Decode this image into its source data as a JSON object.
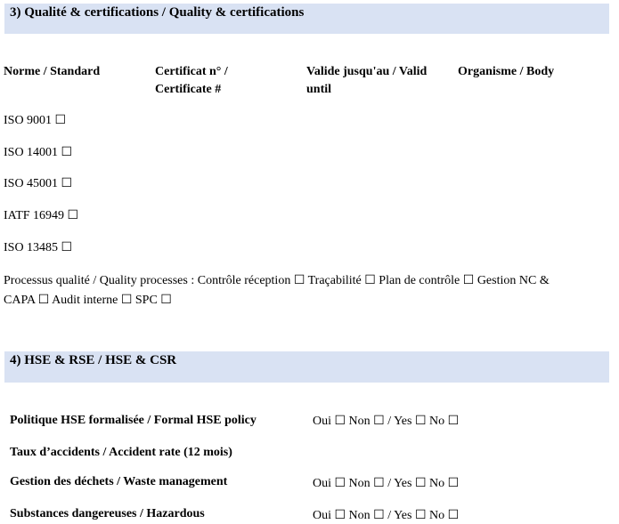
{
  "section3": {
    "title": "3) Qualité & certifications / Quality & certifications",
    "columns": [
      "Norme / Standard",
      "Certificat n° / Certificate #",
      "Valide jusqu'au / Valid until",
      "Organisme / Body"
    ],
    "standards": [
      "ISO 9001 ☐",
      "ISO 14001 ☐",
      "ISO 45001 ☐",
      "IATF 16949 ☐",
      "ISO 13485 ☐"
    ],
    "processes_line1": "Processus qualité / Quality processes : Contrôle réception ☐  Traçabilité ☐  Plan de contrôle ☐  Gestion NC &",
    "processes_line2": "CAPA ☐  Audit interne ☐  SPC ☐"
  },
  "section4": {
    "title": "4) HSE & RSE / HSE & CSR",
    "rows": [
      {
        "label": "Politique HSE formalisée / Formal HSE policy",
        "options": "Oui ☐  Non ☐ / Yes ☐  No ☐"
      },
      {
        "label": "Taux d’accidents / Accident rate (12 mois)",
        "options": ""
      },
      {
        "label": "Gestion des déchets / Waste management",
        "options": "Oui ☐  Non ☐ / Yes ☐  No ☐"
      },
      {
        "label": "Substances dangereuses / Hazardous",
        "options": "Oui ☐  Non ☐ / Yes ☐  No ☐"
      }
    ]
  },
  "colors": {
    "band": "#d9e2f3"
  }
}
